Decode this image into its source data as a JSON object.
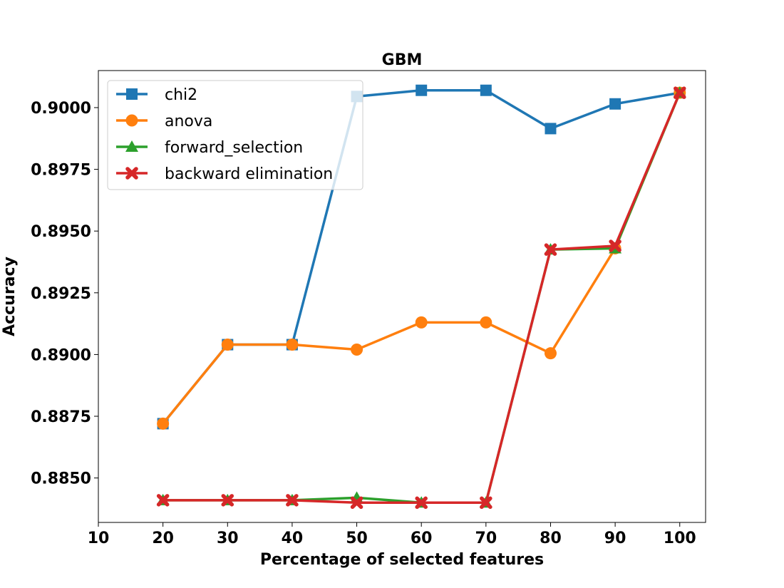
{
  "chart_data": {
    "type": "line",
    "title": "GBM",
    "xlabel": "Percentage of selected features",
    "ylabel": "Accuracy",
    "xlim": [
      10,
      104
    ],
    "ylim": [
      0.8832,
      0.9015
    ],
    "xticks": [
      10,
      20,
      30,
      40,
      50,
      60,
      70,
      80,
      90,
      100
    ],
    "yticks": [
      0.885,
      0.8875,
      0.89,
      0.8925,
      0.895,
      0.8975,
      0.9
    ],
    "ytick_labels": [
      "0.8850",
      "0.8875",
      "0.8900",
      "0.8925",
      "0.8950",
      "0.8975",
      "0.9000"
    ],
    "xtick_labels": [
      "10",
      "20",
      "30",
      "40",
      "50",
      "60",
      "70",
      "80",
      "90",
      "100"
    ],
    "legend_position": "upper-left",
    "grid": false,
    "x": [
      20,
      30,
      40,
      50,
      60,
      70,
      80,
      90,
      100
    ],
    "series": [
      {
        "name": "chi2",
        "color": "#1f77b4",
        "marker": "square",
        "values": [
          0.8872,
          0.8904,
          0.8904,
          0.90045,
          0.9007,
          0.9007,
          0.89915,
          0.90015,
          0.9006
        ]
      },
      {
        "name": "anova",
        "color": "#ff7f0e",
        "marker": "circle",
        "values": [
          0.8872,
          0.8904,
          0.8904,
          0.8902,
          0.8913,
          0.8913,
          0.89005,
          0.8943,
          0.9006
        ]
      },
      {
        "name": "forward_selection",
        "color": "#2ca02c",
        "marker": "triangle",
        "values": [
          0.8841,
          0.8841,
          0.8841,
          0.8842,
          0.884,
          0.884,
          0.89425,
          0.8943,
          0.9006
        ]
      },
      {
        "name": "backward elimination",
        "color": "#d62728",
        "marker": "x",
        "values": [
          0.8841,
          0.8841,
          0.8841,
          0.884,
          0.884,
          0.884,
          0.89425,
          0.8944,
          0.9006
        ]
      }
    ]
  }
}
